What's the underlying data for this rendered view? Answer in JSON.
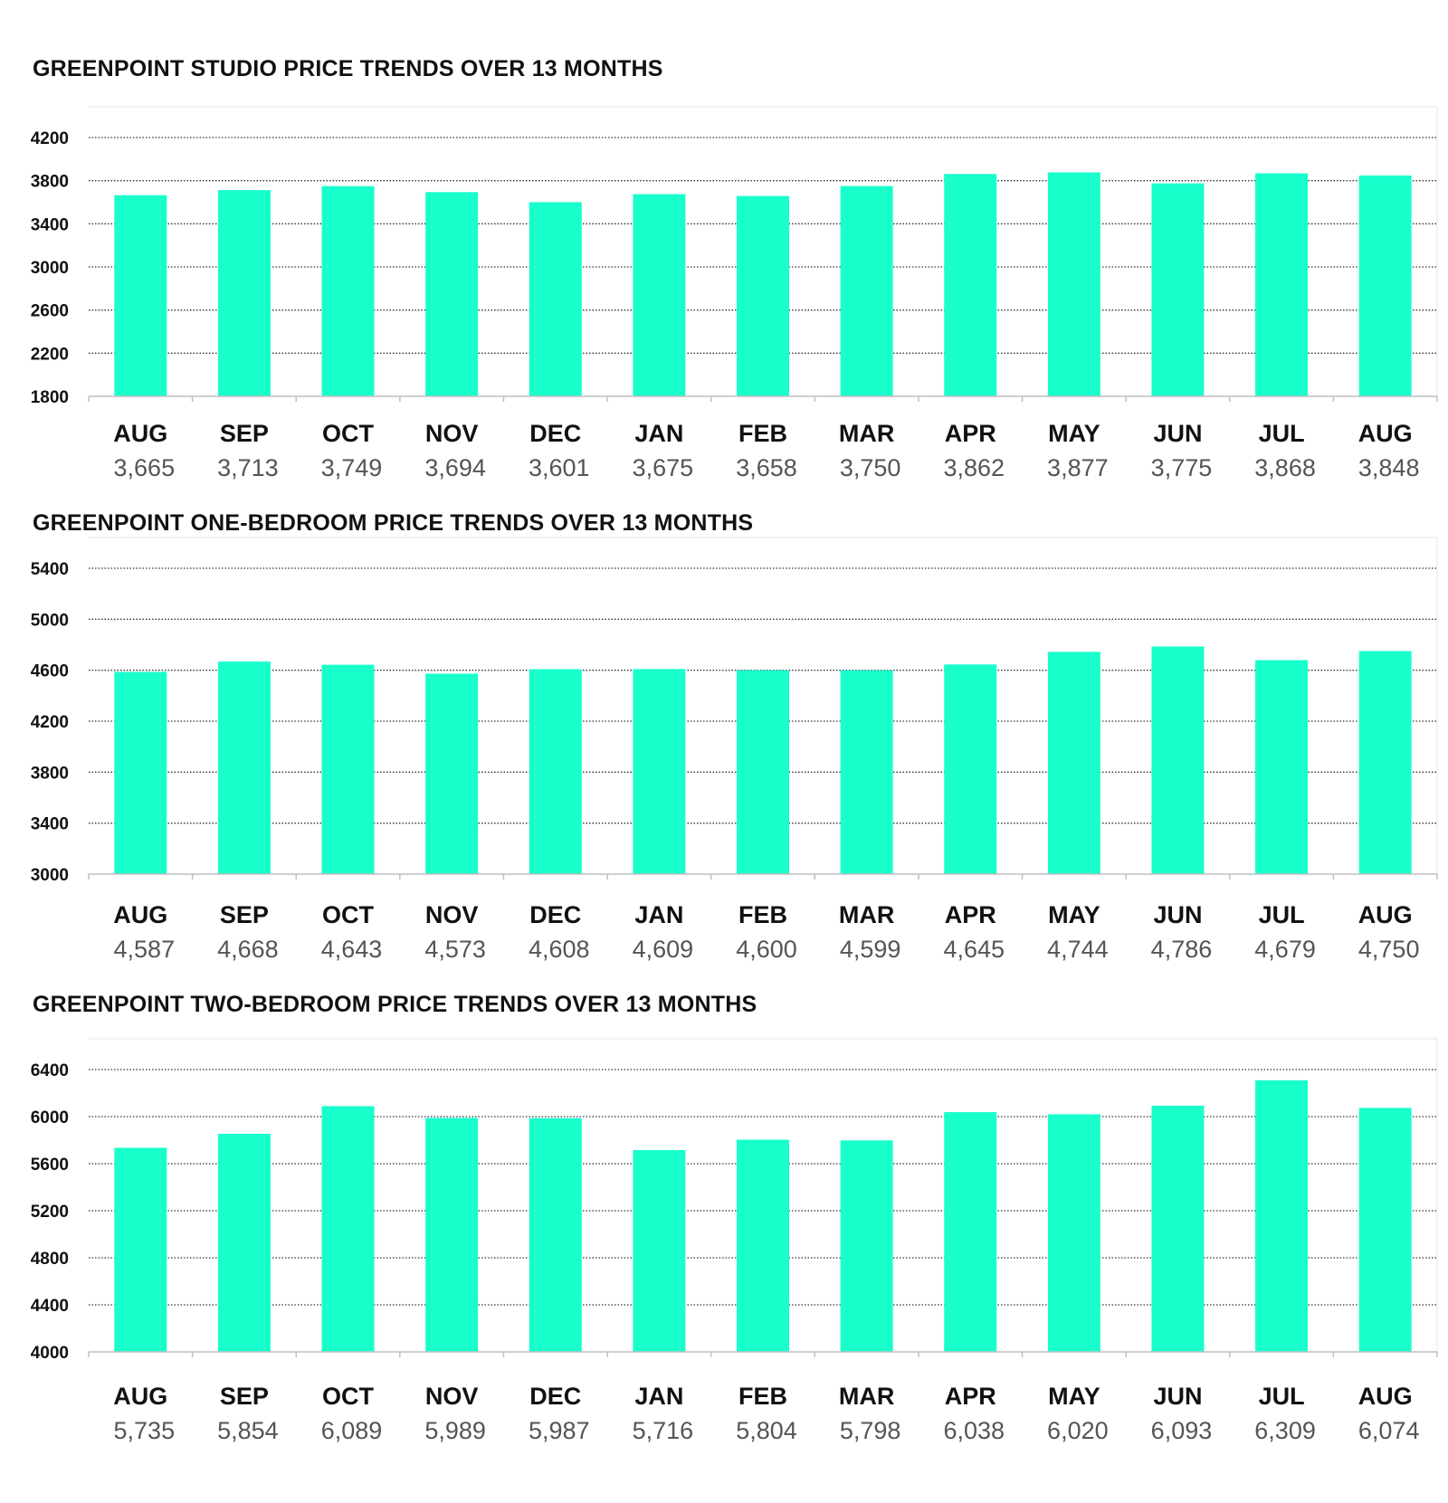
{
  "chart_data": [
    {
      "type": "bar",
      "title": "GREENPOINT STUDIO PRICE TRENDS OVER 13 MONTHS",
      "categories": [
        "AUG",
        "SEP",
        "OCT",
        "NOV",
        "DEC",
        "JAN",
        "FEB",
        "MAR",
        "APR",
        "MAY",
        "JUN",
        "JUL",
        "AUG"
      ],
      "values": [
        3665,
        3713,
        3749,
        3694,
        3601,
        3675,
        3658,
        3750,
        3862,
        3877,
        3775,
        3868,
        3848
      ],
      "value_labels": [
        "3,665",
        "3,713",
        "3,749",
        "3,694",
        "3,601",
        "3,675",
        "3,658",
        "3,750",
        "3,862",
        "3,877",
        "3,775",
        "3,868",
        "3,848"
      ],
      "ylim": [
        1800,
        4200
      ],
      "yticks": [
        "1800",
        "2200",
        "2600",
        "3000",
        "3400",
        "3800",
        "4200"
      ],
      "grid": true,
      "color": "#19ffcc"
    },
    {
      "type": "bar",
      "title": "GREENPOINT ONE-BEDROOM PRICE TRENDS OVER 13 MONTHS",
      "categories": [
        "AUG",
        "SEP",
        "OCT",
        "NOV",
        "DEC",
        "JAN",
        "FEB",
        "MAR",
        "APR",
        "MAY",
        "JUN",
        "JUL",
        "AUG"
      ],
      "values": [
        4587,
        4668,
        4643,
        4573,
        4608,
        4609,
        4600,
        4599,
        4645,
        4744,
        4786,
        4679,
        4750
      ],
      "value_labels": [
        "4,587",
        "4,668",
        "4,643",
        "4,573",
        "4,608",
        "4,609",
        "4,600",
        "4,599",
        "4,645",
        "4,744",
        "4,786",
        "4,679",
        "4,750"
      ],
      "ylim": [
        3000,
        5400
      ],
      "yticks": [
        "3000",
        "3400",
        "3800",
        "4200",
        "4600",
        "5000",
        "5400"
      ],
      "grid": true,
      "color": "#19ffcc"
    },
    {
      "type": "bar",
      "title": "GREENPOINT TWO-BEDROOM PRICE TRENDS OVER 13 MONTHS",
      "categories": [
        "AUG",
        "SEP",
        "OCT",
        "NOV",
        "DEC",
        "JAN",
        "FEB",
        "MAR",
        "APR",
        "MAY",
        "JUN",
        "JUL",
        "AUG"
      ],
      "values": [
        5735,
        5854,
        6089,
        5989,
        5987,
        5716,
        5804,
        5798,
        6038,
        6020,
        6093,
        6309,
        6074
      ],
      "value_labels": [
        "5,735",
        "5,854",
        "6,089",
        "5,989",
        "5,987",
        "5,716",
        "5,804",
        "5,798",
        "6,038",
        "6,020",
        "6,093",
        "6,309",
        "6,074"
      ],
      "ylim": [
        4000,
        6400
      ],
      "yticks": [
        "4000",
        "4400",
        "4800",
        "5200",
        "5600",
        "6000",
        "6400"
      ],
      "grid": true,
      "color": "#19ffcc"
    }
  ]
}
